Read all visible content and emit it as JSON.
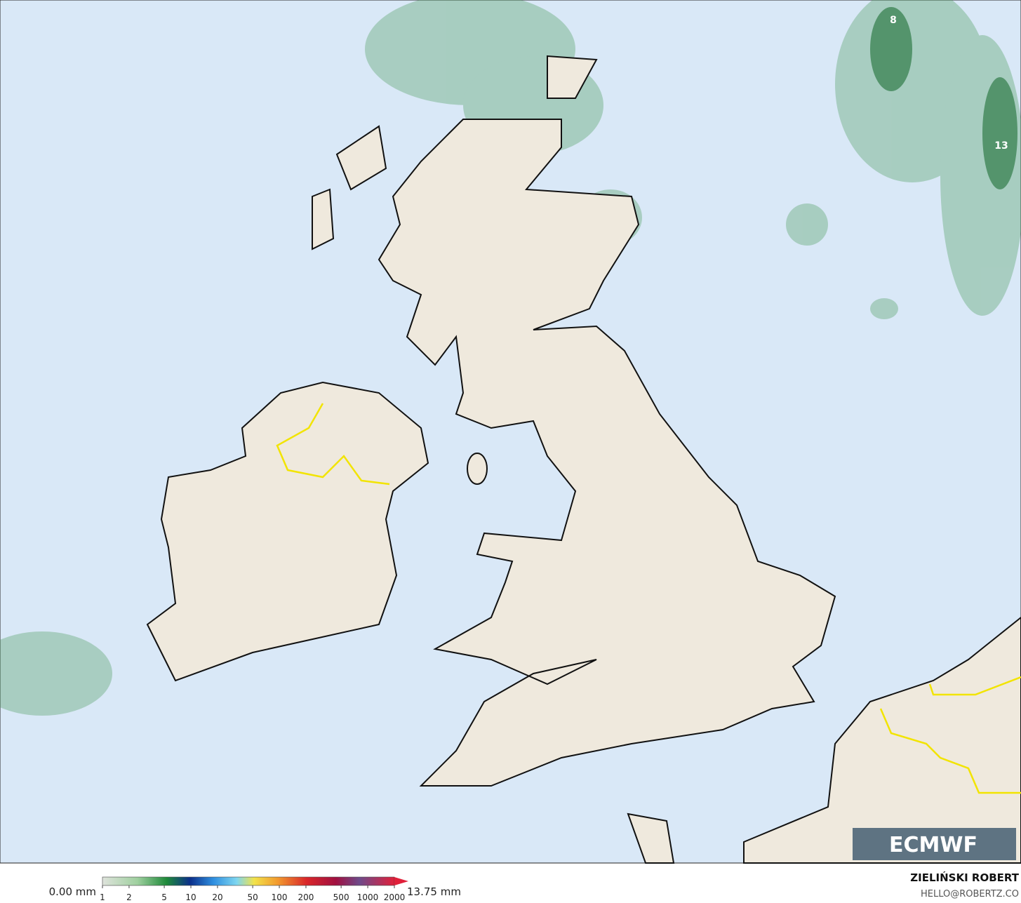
{
  "map": {
    "labels": [
      "8",
      "13"
    ]
  },
  "colorbar": {
    "min_label": "0.00 mm",
    "max_label": "13.75 mm",
    "ticks": [
      1,
      2,
      5,
      10,
      20,
      50,
      100,
      200,
      500,
      1000,
      2000
    ]
  },
  "logo": "ECMWF",
  "credit": {
    "author": "ZIELIŃSKI ROBERT",
    "contact": "HELLO@ROBERTZ.CO"
  }
}
